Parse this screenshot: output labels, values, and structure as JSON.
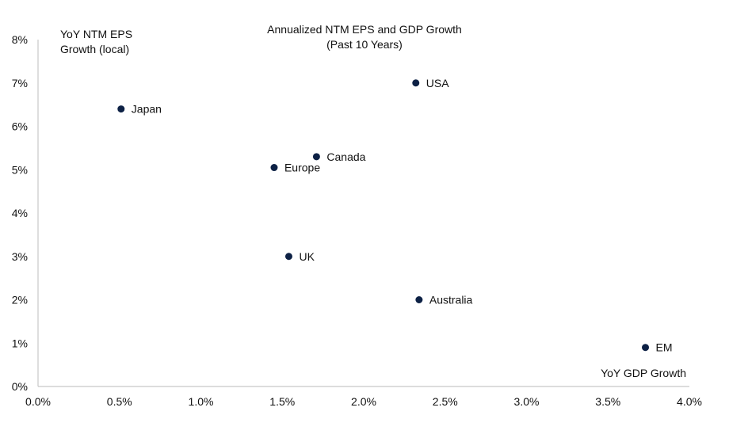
{
  "chart_data": {
    "type": "scatter",
    "title": [
      "Annualized NTM EPS and GDP Growth",
      "(Past 10 Years)"
    ],
    "xlabel": "YoY GDP Growth",
    "ylabel": [
      "YoY NTM EPS",
      "Growth (local)"
    ],
    "xlim": [
      0,
      4.0
    ],
    "ylim": [
      0,
      8
    ],
    "xticks": [
      "0.0%",
      "0.5%",
      "1.0%",
      "1.5%",
      "2.0%",
      "2.5%",
      "3.0%",
      "3.5%",
      "4.0%"
    ],
    "yticks": [
      "0%",
      "1%",
      "2%",
      "3%",
      "4%",
      "5%",
      "6%",
      "7%",
      "8%"
    ],
    "grid": false,
    "point_color": "#0d2145",
    "points": [
      {
        "label": "Japan",
        "x": 0.51,
        "y": 6.4
      },
      {
        "label": "USA",
        "x": 2.32,
        "y": 7.0
      },
      {
        "label": "Canada",
        "x": 1.71,
        "y": 5.3
      },
      {
        "label": "Europe",
        "x": 1.45,
        "y": 5.05
      },
      {
        "label": "UK",
        "x": 1.54,
        "y": 3.0
      },
      {
        "label": "Australia",
        "x": 2.34,
        "y": 2.0
      },
      {
        "label": "EM",
        "x": 3.73,
        "y": 0.9
      }
    ]
  }
}
